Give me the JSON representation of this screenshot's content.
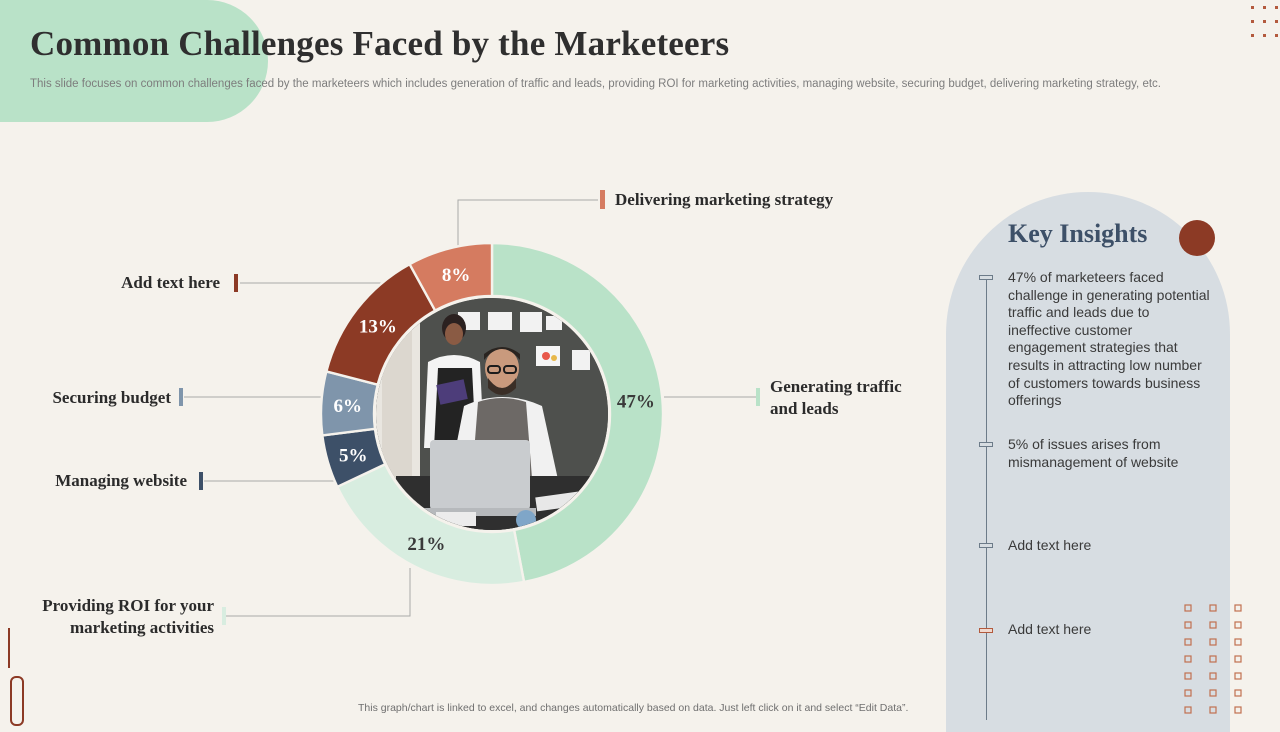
{
  "title": "Common  Challenges Faced by the Marketeers",
  "subtitle": "This slide focuses on common challenges faced by the marketeers which includes generation of traffic and leads, providing ROI for marketing activities, managing website, securing budget, delivering marketing strategy, etc.",
  "footnote": "This graph/chart is linked to excel, and changes automatically based on data. Just left click on it and select “Edit Data”.",
  "chart_data": {
    "type": "pie",
    "subtype": "donut",
    "title": "",
    "labels_order": "clockwise from top",
    "slices": [
      {
        "key": "traffic",
        "label": "Generating traffic and leads",
        "value": 47,
        "display": "47%",
        "color": "#b9e2c8"
      },
      {
        "key": "roi",
        "label": "Providing ROI for your marketing activities",
        "value": 21,
        "display": "21%",
        "color": "#d8ede0"
      },
      {
        "key": "website",
        "label": "Managing website",
        "value": 5,
        "display": "5%",
        "color": "#3d5068"
      },
      {
        "key": "budget",
        "label": "Securing budget",
        "value": 6,
        "display": "6%",
        "color": "#7f95ab"
      },
      {
        "key": "addtext",
        "label": "Add text here",
        "value": 13,
        "display": "13%",
        "color": "#8c3a25"
      },
      {
        "key": "strategy",
        "label": "Delivering marketing strategy",
        "value": 8,
        "display": "8%",
        "color": "#d57b60"
      }
    ]
  },
  "labels": {
    "strategy": "Delivering marketing strategy",
    "addtext": "Add text here",
    "budget": "Securing budget",
    "website": "Managing website",
    "traffic_l1": "Generating traffic",
    "traffic_l2": "and leads",
    "roi_l1": "Providing ROI for your",
    "roi_l2": "marketing activities"
  },
  "insights": {
    "title": "Key Insights",
    "items": [
      "47% of marketeers faced challenge in generating potential traffic and leads due to ineffective customer engagement strategies that results in  attracting low number of customers towards business offerings",
      "5% of issues arises from mismanagement of website",
      "Add text here",
      "Add text here"
    ]
  },
  "colors": {
    "accent_brown": "#8c3a25",
    "accent_salmon": "#d57b60",
    "mint": "#b9e2c8",
    "navy": "#3d5068",
    "steel": "#7f95ab",
    "panel": "#d7dde2",
    "background": "#f5f2ec"
  },
  "icons": {
    "photo": "office-people-photo",
    "decor": "dot-grid-decoration"
  }
}
